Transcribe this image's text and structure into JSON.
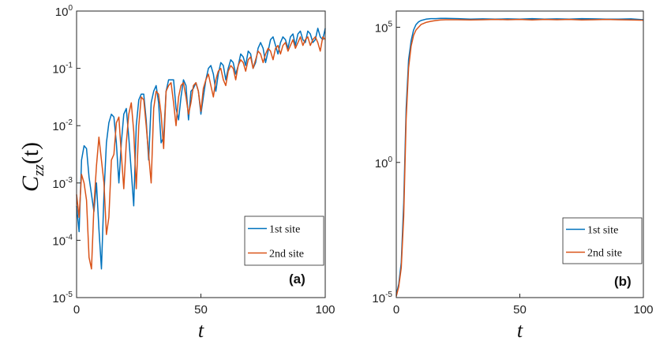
{
  "ylabel": {
    "main": "C",
    "sub": "zz",
    "arg": "(t)"
  },
  "colors": {
    "series1": "#0072BD",
    "series2": "#D95319"
  },
  "chart_data": [
    {
      "type": "line",
      "panel_label": "(a)",
      "xlabel": "t",
      "yscale": "log",
      "xlim": [
        0,
        100
      ],
      "ylim_exp": [
        -5,
        0
      ],
      "xticks": [
        0,
        50,
        100
      ],
      "yticks": [
        {
          "base": "10",
          "exp": "-5"
        },
        {
          "base": "10",
          "exp": "-4"
        },
        {
          "base": "10",
          "exp": "-3"
        },
        {
          "base": "10",
          "exp": "-2"
        },
        {
          "base": "10",
          "exp": "-1"
        },
        {
          "base": "10",
          "exp": "0"
        }
      ],
      "legend_position": "lower-right",
      "series": [
        {
          "name": "1st site",
          "color": "#0072BD",
          "x": [
            0,
            1,
            2,
            3,
            4,
            5,
            6,
            7,
            8,
            9,
            10,
            11,
            12,
            13,
            14,
            15,
            16,
            17,
            18,
            19,
            20,
            21,
            22,
            23,
            24,
            25,
            26,
            27,
            28,
            29,
            30,
            31,
            32,
            33,
            34,
            35,
            36,
            37,
            38,
            39,
            40,
            41,
            42,
            43,
            44,
            45,
            46,
            47,
            48,
            49,
            50,
            51,
            52,
            53,
            54,
            55,
            56,
            57,
            58,
            59,
            60,
            61,
            62,
            63,
            64,
            65,
            66,
            67,
            68,
            69,
            70,
            71,
            72,
            73,
            74,
            75,
            76,
            77,
            78,
            79,
            80,
            81,
            82,
            83,
            84,
            85,
            86,
            87,
            88,
            89,
            90,
            91,
            92,
            93,
            94,
            95,
            96,
            97,
            98,
            99,
            100
          ],
          "log10y": [
            -3.4,
            -3.85,
            -2.6,
            -2.35,
            -2.4,
            -2.9,
            -3.2,
            -3.5,
            -3.0,
            -3.8,
            -4.5,
            -3.2,
            -2.3,
            -1.95,
            -1.8,
            -1.85,
            -2.3,
            -3.0,
            -2.3,
            -1.8,
            -1.7,
            -2.2,
            -2.8,
            -3.4,
            -2.0,
            -1.55,
            -1.45,
            -1.45,
            -1.9,
            -2.6,
            -1.6,
            -1.4,
            -1.3,
            -1.6,
            -2.3,
            -2.2,
            -1.4,
            -1.2,
            -1.2,
            -1.2,
            -1.7,
            -1.9,
            -1.5,
            -1.2,
            -1.3,
            -1.9,
            -1.4,
            -1.35,
            -1.25,
            -1.4,
            -1.8,
            -1.5,
            -1.2,
            -1.0,
            -0.95,
            -1.1,
            -1.4,
            -1.1,
            -0.9,
            -0.95,
            -1.2,
            -1.0,
            -0.85,
            -0.9,
            -1.1,
            -0.95,
            -0.75,
            -0.8,
            -0.95,
            -0.7,
            -0.75,
            -1.0,
            -0.9,
            -0.65,
            -0.55,
            -0.65,
            -0.9,
            -0.7,
            -0.5,
            -0.45,
            -0.6,
            -0.75,
            -0.55,
            -0.45,
            -0.5,
            -0.65,
            -0.45,
            -0.4,
            -0.6,
            -0.4,
            -0.35,
            -0.5,
            -0.55,
            -0.35,
            -0.4,
            -0.55,
            -0.5,
            -0.3,
            -0.45,
            -0.5,
            -0.3
          ]
        },
        {
          "name": "2nd site",
          "color": "#D95319",
          "x": [
            0,
            1,
            2,
            3,
            4,
            5,
            6,
            7,
            8,
            9,
            10,
            11,
            12,
            13,
            14,
            15,
            16,
            17,
            18,
            19,
            20,
            21,
            22,
            23,
            24,
            25,
            26,
            27,
            28,
            29,
            30,
            31,
            32,
            33,
            34,
            35,
            36,
            37,
            38,
            39,
            40,
            41,
            42,
            43,
            44,
            45,
            46,
            47,
            48,
            49,
            50,
            51,
            52,
            53,
            54,
            55,
            56,
            57,
            58,
            59,
            60,
            61,
            62,
            63,
            64,
            65,
            66,
            67,
            68,
            69,
            70,
            71,
            72,
            73,
            74,
            75,
            76,
            77,
            78,
            79,
            80,
            81,
            82,
            83,
            84,
            85,
            86,
            87,
            88,
            89,
            90,
            91,
            92,
            93,
            94,
            95,
            96,
            97,
            98,
            99,
            100
          ],
          "log10y": [
            -3.2,
            -3.6,
            -2.85,
            -3.0,
            -3.3,
            -4.3,
            -4.5,
            -3.4,
            -2.7,
            -2.2,
            -2.6,
            -3.0,
            -3.9,
            -3.6,
            -2.6,
            -2.5,
            -1.95,
            -1.85,
            -2.5,
            -3.1,
            -2.3,
            -1.8,
            -1.6,
            -2.1,
            -3.1,
            -2.0,
            -1.5,
            -1.55,
            -2.0,
            -2.5,
            -3.0,
            -1.7,
            -1.4,
            -1.45,
            -1.8,
            -2.4,
            -1.4,
            -1.3,
            -1.25,
            -1.6,
            -2.0,
            -1.5,
            -1.3,
            -1.25,
            -1.5,
            -1.8,
            -1.6,
            -1.3,
            -1.25,
            -1.4,
            -1.75,
            -1.35,
            -1.2,
            -1.1,
            -1.3,
            -1.5,
            -1.2,
            -1.05,
            -1.0,
            -1.2,
            -1.3,
            -1.05,
            -0.95,
            -1.0,
            -1.2,
            -0.95,
            -0.85,
            -0.9,
            -1.05,
            -0.85,
            -0.8,
            -1.0,
            -0.85,
            -0.7,
            -0.75,
            -0.9,
            -0.75,
            -0.65,
            -0.7,
            -0.85,
            -0.65,
            -0.6,
            -0.75,
            -0.6,
            -0.55,
            -0.7,
            -0.6,
            -0.5,
            -0.65,
            -0.55,
            -0.45,
            -0.6,
            -0.5,
            -0.45,
            -0.6,
            -0.5,
            -0.45,
            -0.55,
            -0.7,
            -0.45,
            -0.5
          ]
        }
      ]
    },
    {
      "type": "line",
      "panel_label": "(b)",
      "xlabel": "t",
      "yscale": "log",
      "xlim": [
        0,
        100
      ],
      "ylim_exp": [
        -5,
        5.6
      ],
      "xticks": [
        0,
        50,
        100
      ],
      "yticks": [
        {
          "base": "10",
          "exp": "-5"
        },
        {
          "base": "10",
          "exp": "0"
        },
        {
          "base": "10",
          "exp": "5"
        }
      ],
      "legend_position": "right",
      "series": [
        {
          "name": "1st site",
          "color": "#0072BD",
          "x": [
            0,
            1,
            2,
            3,
            4,
            5,
            6,
            7,
            8,
            9,
            10,
            12,
            14,
            16,
            18,
            20,
            25,
            30,
            35,
            40,
            45,
            50,
            55,
            60,
            65,
            70,
            75,
            80,
            85,
            90,
            95,
            100
          ],
          "log10y": [
            -4.9,
            -4.5,
            -3.7,
            -1.5,
            2.0,
            3.8,
            4.5,
            4.9,
            5.1,
            5.2,
            5.25,
            5.3,
            5.32,
            5.32,
            5.33,
            5.33,
            5.32,
            5.3,
            5.31,
            5.3,
            5.31,
            5.3,
            5.32,
            5.3,
            5.31,
            5.3,
            5.32,
            5.31,
            5.3,
            5.3,
            5.31,
            5.28
          ]
        },
        {
          "name": "2nd site",
          "color": "#D95319",
          "x": [
            0,
            1,
            2,
            3,
            4,
            5,
            6,
            7,
            8,
            9,
            10,
            12,
            14,
            16,
            18,
            20,
            25,
            30,
            35,
            40,
            45,
            50,
            55,
            60,
            65,
            70,
            75,
            80,
            85,
            90,
            95,
            100
          ],
          "log10y": [
            -4.95,
            -4.6,
            -3.9,
            -2.0,
            1.6,
            3.5,
            4.3,
            4.7,
            4.9,
            5.0,
            5.1,
            5.18,
            5.22,
            5.25,
            5.27,
            5.28,
            5.28,
            5.27,
            5.28,
            5.29,
            5.28,
            5.29,
            5.27,
            5.29,
            5.28,
            5.29,
            5.27,
            5.28,
            5.29,
            5.28,
            5.27,
            5.26
          ]
        }
      ]
    }
  ]
}
